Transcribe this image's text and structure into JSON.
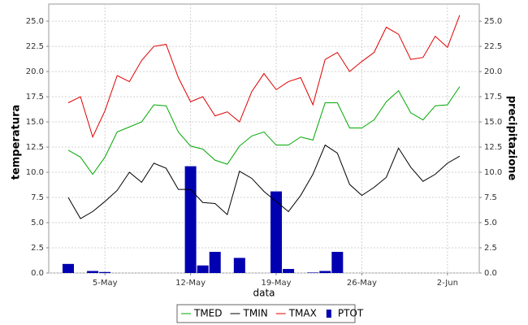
{
  "chart_data": {
    "type": "line",
    "xlabel": "data",
    "ylabel": "temperatura",
    "y2label": "precipitazione",
    "x": [
      "2-May",
      "3-May",
      "4-May",
      "5-May",
      "6-May",
      "7-May",
      "8-May",
      "9-May",
      "10-May",
      "11-May",
      "12-May",
      "13-May",
      "14-May",
      "15-May",
      "16-May",
      "17-May",
      "18-May",
      "19-May",
      "20-May",
      "21-May",
      "22-May",
      "23-May",
      "24-May",
      "25-May",
      "26-May",
      "27-May",
      "28-May",
      "29-May",
      "30-May",
      "31-May",
      "1-Jun",
      "2-Jun",
      "3-Jun"
    ],
    "xticks": [
      "5-May",
      "12-May",
      "19-May",
      "26-May",
      "2-Jun"
    ],
    "ylim": [
      0,
      26.7
    ],
    "yticks": [
      {
        "value": 0,
        "label": "0.0"
      },
      {
        "value": 2.5,
        "label": "2.5"
      },
      {
        "value": 5,
        "label": "5.0"
      },
      {
        "value": 7.5,
        "label": "7.5"
      },
      {
        "value": 10,
        "label": "10.0"
      },
      {
        "value": 12.5,
        "label": "12.5"
      },
      {
        "value": 15,
        "label": "15.0"
      },
      {
        "value": 17.5,
        "label": "17.5"
      },
      {
        "value": 20,
        "label": "20.0"
      },
      {
        "value": 22.5,
        "label": "22.5"
      },
      {
        "value": 25,
        "label": "25.0"
      }
    ],
    "y2lim": [
      0,
      26.7
    ],
    "y2ticks": [
      {
        "value": 0,
        "label": "0.0"
      },
      {
        "value": 2.5,
        "label": "2.5"
      },
      {
        "value": 5,
        "label": "5.0"
      },
      {
        "value": 7.5,
        "label": "7.5"
      },
      {
        "value": 10,
        "label": "10.0"
      },
      {
        "value": 12.5,
        "label": "12.5"
      },
      {
        "value": 15,
        "label": "15.0"
      },
      {
        "value": 17.5,
        "label": "17.5"
      },
      {
        "value": 20,
        "label": "20.0"
      },
      {
        "value": 22.5,
        "label": "22.5"
      },
      {
        "value": 25,
        "label": "25.0"
      }
    ],
    "grid": true,
    "legend": "bottom",
    "series": [
      {
        "name": "TMED",
        "color": "#00a800",
        "type": "line",
        "values": [
          12.2,
          11.5,
          9.8,
          11.5,
          14.0,
          14.5,
          15.0,
          16.7,
          16.6,
          14.0,
          12.6,
          12.3,
          11.2,
          10.8,
          12.6,
          13.6,
          14.0,
          12.7,
          12.7,
          13.5,
          13.2,
          16.9,
          16.9,
          14.4,
          14.4,
          15.2,
          17.0,
          18.1,
          15.9,
          15.2,
          16.6,
          16.7,
          18.5
        ]
      },
      {
        "name": "TMIN",
        "color": "#000000",
        "type": "line",
        "values": [
          7.5,
          5.4,
          6.1,
          7.1,
          8.2,
          10.0,
          9.0,
          10.9,
          10.4,
          8.3,
          8.3,
          7.0,
          6.9,
          5.8,
          10.1,
          9.4,
          8.1,
          7.1,
          6.1,
          7.7,
          9.8,
          12.7,
          11.9,
          8.8,
          7.7,
          8.5,
          9.5,
          12.4,
          10.5,
          9.1,
          9.8,
          10.9,
          11.6
        ]
      },
      {
        "name": "TMAX",
        "color": "#e00000",
        "type": "line",
        "values": [
          16.9,
          17.5,
          13.5,
          16.1,
          19.6,
          19.0,
          21.1,
          22.5,
          22.7,
          19.4,
          17.0,
          17.5,
          15.6,
          16.0,
          15.0,
          18.0,
          19.8,
          18.2,
          19.0,
          19.4,
          16.7,
          21.2,
          21.9,
          20.0,
          21.0,
          21.9,
          24.4,
          23.7,
          21.2,
          21.4,
          23.5,
          22.4,
          25.6
        ]
      },
      {
        "name": "PTOT",
        "color": "#0000b0",
        "type": "bar",
        "axis": "y2",
        "values": [
          0.9,
          0,
          0.2,
          0.1,
          0,
          0,
          0,
          0,
          0,
          0,
          10.6,
          0.75,
          2.1,
          0,
          1.5,
          0,
          0,
          8.1,
          0.4,
          0,
          0.05,
          0.2,
          2.1,
          0,
          0,
          0,
          0,
          0,
          0,
          0,
          0,
          0,
          0
        ]
      }
    ]
  }
}
